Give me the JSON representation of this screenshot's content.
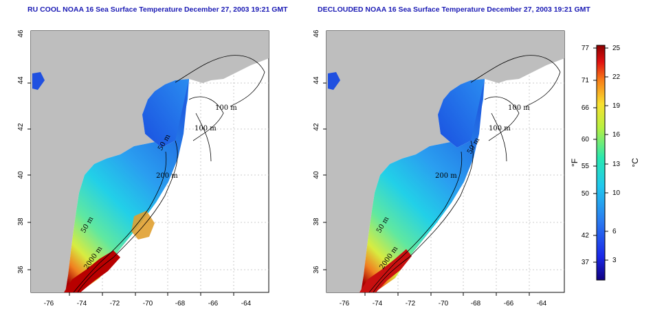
{
  "panels": [
    {
      "title": "RU COOL NOAA 16 Sea Surface Temperature December 27, 2003 19:21 GMT",
      "lon_ticks": [
        "-76",
        "-74",
        "-72",
        "-70",
        "-68",
        "-66",
        "-64"
      ],
      "lat_ticks": [
        "46",
        "44",
        "42",
        "40",
        "38",
        "36"
      ],
      "isobaths": [
        "100 m",
        "100 m",
        "50 m",
        "200 m",
        "50 m",
        "2000 m"
      ]
    },
    {
      "title": "DECLOUDED NOAA 16 Sea Surface Temperature December 27, 2003 19:21 GMT",
      "lon_ticks": [
        "-76",
        "-74",
        "-72",
        "-70",
        "-68",
        "-66",
        "-64"
      ],
      "lat_ticks": [
        "46",
        "44",
        "42",
        "40",
        "38",
        "36"
      ],
      "isobaths": [
        "100 m",
        "100 m",
        "50 m",
        "200 m",
        "50 m",
        "2000 m"
      ]
    }
  ],
  "colorbar": {
    "fahrenheit_ticks": [
      "77",
      "71",
      "66",
      "60",
      "55",
      "50",
      "42",
      "37"
    ],
    "celsius_ticks": [
      "25",
      "22",
      "19",
      "16",
      "13",
      "10",
      "6",
      "3"
    ],
    "fahrenheit_unit": "°F",
    "celsius_unit": "°C",
    "colors": [
      "#100080",
      "#1a28e8",
      "#2a7af0",
      "#20c8ee",
      "#28e8b0",
      "#b8f040",
      "#f8e030",
      "#f88018",
      "#e01010",
      "#8c0000"
    ]
  }
}
